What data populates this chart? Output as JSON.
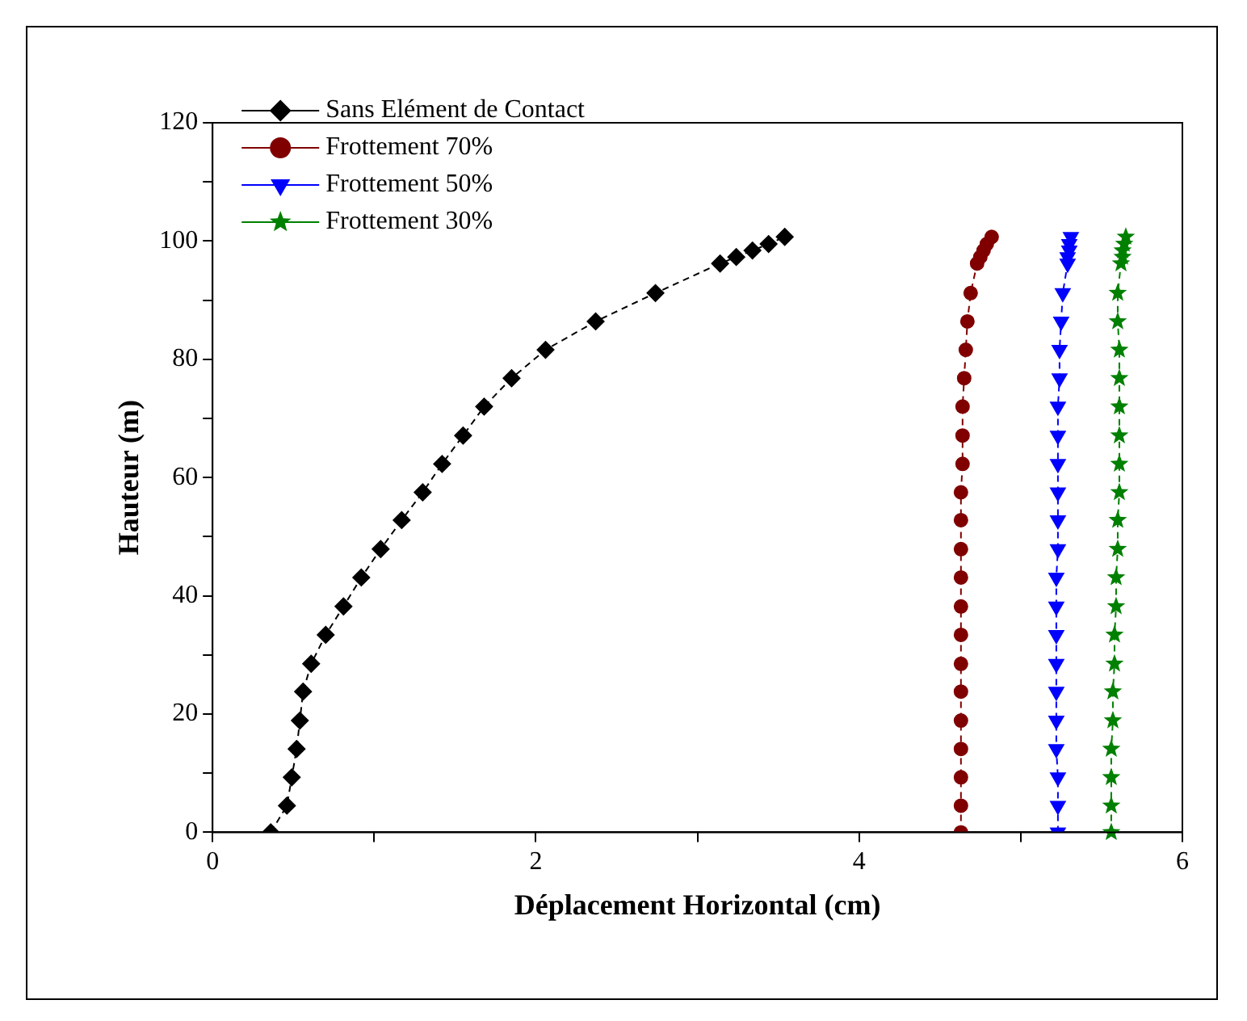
{
  "chart_data": {
    "type": "line",
    "xlabel": "Déplacement Horizontal (cm)",
    "ylabel": "Hauteur (m)",
    "xlim": [
      0,
      6
    ],
    "xticks": [
      0,
      {
        "value": 1,
        "label": null
      },
      2,
      {
        "value": 3,
        "label": null
      },
      4,
      {
        "value": 5,
        "label": null
      },
      6
    ],
    "ylim": [
      0,
      120
    ],
    "yticks": [
      0,
      {
        "value": 10,
        "label": null
      },
      20,
      {
        "value": 30,
        "label": null
      },
      40,
      {
        "value": 50,
        "label": null
      },
      60,
      {
        "value": 70,
        "label": null
      },
      80,
      {
        "value": 90,
        "label": null
      },
      100,
      {
        "value": 110,
        "label": null
      },
      120
    ],
    "grid": false,
    "legend": "top left",
    "line_style": "dashed",
    "series": [
      {
        "name": "Sans Elément de Contact",
        "color": "#000000",
        "marker": "diamond",
        "x": [
          0.36,
          0.46,
          0.49,
          0.52,
          0.54,
          0.56,
          0.61,
          0.7,
          0.81,
          0.92,
          1.04,
          1.17,
          1.3,
          1.42,
          1.55,
          1.68,
          1.85,
          2.06,
          2.37,
          2.74,
          3.14,
          3.24,
          3.34,
          3.44,
          3.54
        ],
        "values": [
          0,
          4.5,
          9.3,
          14.1,
          18.9,
          23.8,
          28.5,
          33.4,
          38.2,
          43.1,
          47.9,
          52.8,
          57.5,
          62.3,
          67.1,
          72,
          76.8,
          81.6,
          86.4,
          91.2,
          96.2,
          97.3,
          98.4,
          99.5,
          100.7
        ]
      },
      {
        "name": "Frottement 70%",
        "color": "#800000",
        "marker": "circle",
        "x": [
          4.63,
          4.63,
          4.63,
          4.63,
          4.63,
          4.63,
          4.63,
          4.63,
          4.63,
          4.63,
          4.63,
          4.63,
          4.63,
          4.64,
          4.64,
          4.64,
          4.65,
          4.66,
          4.67,
          4.69,
          4.73,
          4.75,
          4.77,
          4.79,
          4.82
        ],
        "values": [
          0,
          4.5,
          9.3,
          14.1,
          18.9,
          23.8,
          28.5,
          33.4,
          38.2,
          43.1,
          47.9,
          52.8,
          57.5,
          62.3,
          67.1,
          72,
          76.8,
          81.6,
          86.4,
          91.2,
          96.2,
          97.3,
          98.4,
          99.5,
          100.7
        ]
      },
      {
        "name": "Frottement 50%",
        "color": "#0000ff",
        "marker": "triangle",
        "x": [
          5.23,
          5.23,
          5.23,
          5.22,
          5.22,
          5.22,
          5.22,
          5.22,
          5.22,
          5.22,
          5.23,
          5.23,
          5.23,
          5.23,
          5.23,
          5.23,
          5.24,
          5.24,
          5.25,
          5.26,
          5.29,
          5.29,
          5.3,
          5.3,
          5.31
        ],
        "values": [
          0,
          4.5,
          9.3,
          14.1,
          18.9,
          23.8,
          28.5,
          33.4,
          38.2,
          43.1,
          47.9,
          52.8,
          57.5,
          62.3,
          67.1,
          72,
          76.8,
          81.6,
          86.4,
          91.2,
          96.2,
          97.3,
          98.4,
          99.5,
          100.7
        ]
      },
      {
        "name": "Frottement 30%",
        "color": "#008000",
        "marker": "star",
        "x": [
          5.56,
          5.56,
          5.56,
          5.56,
          5.57,
          5.57,
          5.58,
          5.58,
          5.59,
          5.59,
          5.6,
          5.6,
          5.61,
          5.61,
          5.61,
          5.61,
          5.61,
          5.61,
          5.6,
          5.6,
          5.62,
          5.63,
          5.63,
          5.64,
          5.65
        ],
        "values": [
          0,
          4.5,
          9.3,
          14.1,
          18.9,
          23.8,
          28.5,
          33.4,
          38.2,
          43.1,
          47.9,
          52.8,
          57.5,
          62.3,
          67.1,
          72,
          76.8,
          81.6,
          86.4,
          91.2,
          96.2,
          97.3,
          98.4,
          99.5,
          100.7
        ]
      }
    ]
  }
}
